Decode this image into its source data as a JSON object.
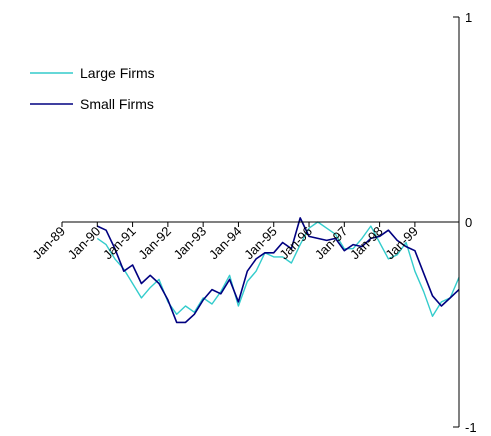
{
  "chart_data": {
    "type": "line",
    "title": "",
    "xlabel": "",
    "ylabel": "",
    "ylim": [
      -1,
      1
    ],
    "y_ticks": [
      1,
      0,
      -1
    ],
    "y_axis_side": "right",
    "x_tick_labels": [
      "Jan-89",
      "Jan-90",
      "Jan-91",
      "Jan-92",
      "Jan-93",
      "Jan-94",
      "Jan-95",
      "Jan-96",
      "Jan-97",
      "Jan-98",
      "Jan-99"
    ],
    "grid": false,
    "legend": "top-left",
    "x": [
      "1990-01",
      "1990-04",
      "1990-07",
      "1990-10",
      "1991-01",
      "1991-04",
      "1991-07",
      "1991-10",
      "1992-01",
      "1992-04",
      "1992-07",
      "1992-10",
      "1993-01",
      "1993-04",
      "1993-07",
      "1993-10",
      "1994-01",
      "1994-04",
      "1994-07",
      "1994-10",
      "1995-01",
      "1995-04",
      "1995-07",
      "1995-10",
      "1996-01",
      "1996-04",
      "1996-07",
      "1996-10",
      "1997-01",
      "1997-04",
      "1997-07",
      "1997-10",
      "1998-01",
      "1998-04",
      "1998-07",
      "1998-10",
      "1999-01",
      "1999-04",
      "1999-07",
      "1999-10",
      "2000-01",
      "2000-04"
    ],
    "series": [
      {
        "name": "Large Firms",
        "color": "#33cccc",
        "values": [
          -0.08,
          -0.11,
          -0.18,
          -0.23,
          -0.3,
          -0.37,
          -0.32,
          -0.28,
          -0.39,
          -0.45,
          -0.41,
          -0.44,
          -0.37,
          -0.4,
          -0.34,
          -0.26,
          -0.41,
          -0.29,
          -0.24,
          -0.15,
          -0.17,
          -0.17,
          -0.2,
          -0.11,
          -0.03,
          0.0,
          -0.03,
          -0.06,
          -0.13,
          -0.13,
          -0.08,
          -0.02,
          -0.1,
          -0.18,
          -0.16,
          -0.1,
          -0.24,
          -0.34,
          -0.46,
          -0.39,
          -0.37,
          -0.27
        ]
      },
      {
        "name": "Small Firms",
        "color": "#000080",
        "values": [
          -0.02,
          -0.04,
          -0.13,
          -0.24,
          -0.21,
          -0.3,
          -0.26,
          -0.3,
          -0.38,
          -0.49,
          -0.49,
          -0.45,
          -0.38,
          -0.33,
          -0.35,
          -0.28,
          -0.39,
          -0.24,
          -0.18,
          -0.15,
          -0.15,
          -0.1,
          -0.13,
          0.02,
          -0.07,
          -0.08,
          -0.09,
          -0.08,
          -0.14,
          -0.11,
          -0.12,
          -0.08,
          -0.07,
          -0.04,
          -0.09,
          -0.12,
          -0.14,
          -0.25,
          -0.36,
          -0.41,
          -0.37,
          -0.33
        ]
      }
    ]
  }
}
